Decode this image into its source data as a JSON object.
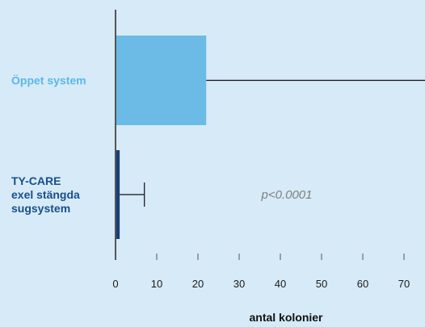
{
  "chart_data": {
    "type": "bar",
    "orientation": "horizontal",
    "categories": [
      {
        "lines": [
          "Öppet system"
        ],
        "color": "#5bb8e8"
      },
      {
        "lines": [
          "TY-CARE",
          "exel stängda",
          "sugsystem"
        ],
        "color": "#1a4f8a"
      }
    ],
    "values": [
      22,
      1
    ],
    "error_upper": [
      76,
      7
    ],
    "bar_colors": [
      "#6bbbe6",
      "#1a3f7a"
    ],
    "xlabel": "antal kolonier",
    "xlim": [
      0,
      75
    ],
    "xticks": [
      0,
      10,
      20,
      30,
      40,
      50,
      60,
      70
    ],
    "annotation": "p<0.0001",
    "grid": false
  },
  "colors": {
    "background": "#d6eaf8",
    "axis": "#555555",
    "tick_text": "#1a1a1a",
    "annotation": "#7f7f7f"
  }
}
